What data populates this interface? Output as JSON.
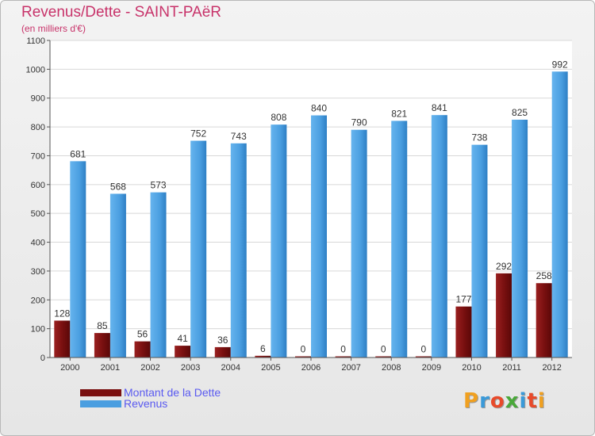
{
  "header": {
    "title": "Revenus/Dette - SAINT-PAëR",
    "subtitle": "(en milliers d'€)"
  },
  "legend": [
    {
      "label": "Montant de la Dette",
      "color": "#7a1010"
    },
    {
      "label": "Revenus",
      "color": "#4a9ee0"
    }
  ],
  "brand": {
    "letters": [
      "P",
      "r",
      "o",
      "x",
      "i",
      "t",
      "i"
    ],
    "colors": [
      "#f0a020",
      "#3a9ad9",
      "#e84a2a",
      "#4aa83a",
      "#3a9ad9",
      "#e84a2a",
      "#f0a020"
    ]
  },
  "chart_data": {
    "type": "bar",
    "categories": [
      "2000",
      "2001",
      "2002",
      "2003",
      "2004",
      "2005",
      "2006",
      "2007",
      "2008",
      "2009",
      "2010",
      "2011",
      "2012"
    ],
    "series": [
      {
        "name": "Montant de la Dette",
        "values": [
          128,
          85,
          56,
          41,
          36,
          6,
          0,
          0,
          0,
          0,
          177,
          292,
          258
        ],
        "color": "#7a1010"
      },
      {
        "name": "Revenus",
        "values": [
          681,
          568,
          573,
          752,
          743,
          808,
          840,
          790,
          821,
          841,
          738,
          825,
          992
        ],
        "color": "#4a9ee0"
      }
    ],
    "ylim": [
      0,
      1100
    ],
    "yticks": [
      0,
      100,
      200,
      300,
      400,
      500,
      600,
      700,
      800,
      900,
      1000,
      1100
    ],
    "grid": true,
    "legend_position": "bottom-left"
  }
}
